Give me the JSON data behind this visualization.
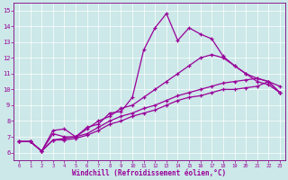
{
  "xlabel": "Windchill (Refroidissement éolien,°C)",
  "bg_color": "#cce8e8",
  "line_color": "#990099",
  "spine_color": "#800080",
  "xlim": [
    -0.5,
    23.5
  ],
  "ylim": [
    5.5,
    15.5
  ],
  "xticks": [
    0,
    1,
    2,
    3,
    4,
    5,
    6,
    7,
    8,
    9,
    10,
    11,
    12,
    13,
    14,
    15,
    16,
    17,
    18,
    19,
    20,
    21,
    22,
    23
  ],
  "yticks": [
    6,
    7,
    8,
    9,
    10,
    11,
    12,
    13,
    14,
    15
  ],
  "series": [
    {
      "x": [
        0,
        1,
        2,
        3,
        4,
        5,
        6,
        7,
        8,
        9,
        10,
        11,
        12,
        13,
        14,
        15,
        16,
        17,
        18,
        19,
        20,
        21,
        22,
        23
      ],
      "y": [
        6.7,
        6.7,
        6.1,
        7.4,
        7.5,
        7.0,
        7.6,
        7.8,
        8.5,
        8.6,
        9.5,
        12.5,
        13.9,
        14.8,
        13.1,
        13.9,
        13.5,
        13.2,
        12.1,
        11.5,
        11.0,
        10.5,
        10.3,
        9.8
      ]
    },
    {
      "x": [
        0,
        1,
        2,
        3,
        4,
        5,
        6,
        7,
        8,
        9,
        10,
        11,
        12,
        13,
        14,
        15,
        16,
        17,
        18,
        19,
        20,
        21,
        22,
        23
      ],
      "y": [
        6.7,
        6.7,
        6.1,
        7.2,
        7.0,
        7.0,
        7.5,
        8.0,
        8.3,
        8.8,
        9.0,
        9.5,
        10.0,
        10.5,
        11.0,
        11.5,
        12.0,
        12.2,
        12.0,
        11.5,
        11.0,
        10.7,
        10.5,
        10.2
      ]
    },
    {
      "x": [
        0,
        1,
        2,
        3,
        4,
        5,
        6,
        7,
        8,
        9,
        10,
        11,
        12,
        13,
        14,
        15,
        16,
        17,
        18,
        19,
        20,
        21,
        22,
        23
      ],
      "y": [
        6.7,
        6.7,
        6.1,
        6.8,
        6.9,
        7.0,
        7.2,
        7.6,
        8.0,
        8.3,
        8.5,
        8.8,
        9.0,
        9.3,
        9.6,
        9.8,
        10.0,
        10.2,
        10.4,
        10.5,
        10.6,
        10.7,
        10.5,
        9.8
      ]
    },
    {
      "x": [
        0,
        1,
        2,
        3,
        4,
        5,
        6,
        7,
        8,
        9,
        10,
        11,
        12,
        13,
        14,
        15,
        16,
        17,
        18,
        19,
        20,
        21,
        22,
        23
      ],
      "y": [
        6.7,
        6.7,
        6.1,
        6.8,
        6.8,
        6.9,
        7.1,
        7.4,
        7.8,
        8.0,
        8.3,
        8.5,
        8.7,
        9.0,
        9.3,
        9.5,
        9.6,
        9.8,
        10.0,
        10.0,
        10.1,
        10.2,
        10.5,
        9.8
      ]
    }
  ]
}
